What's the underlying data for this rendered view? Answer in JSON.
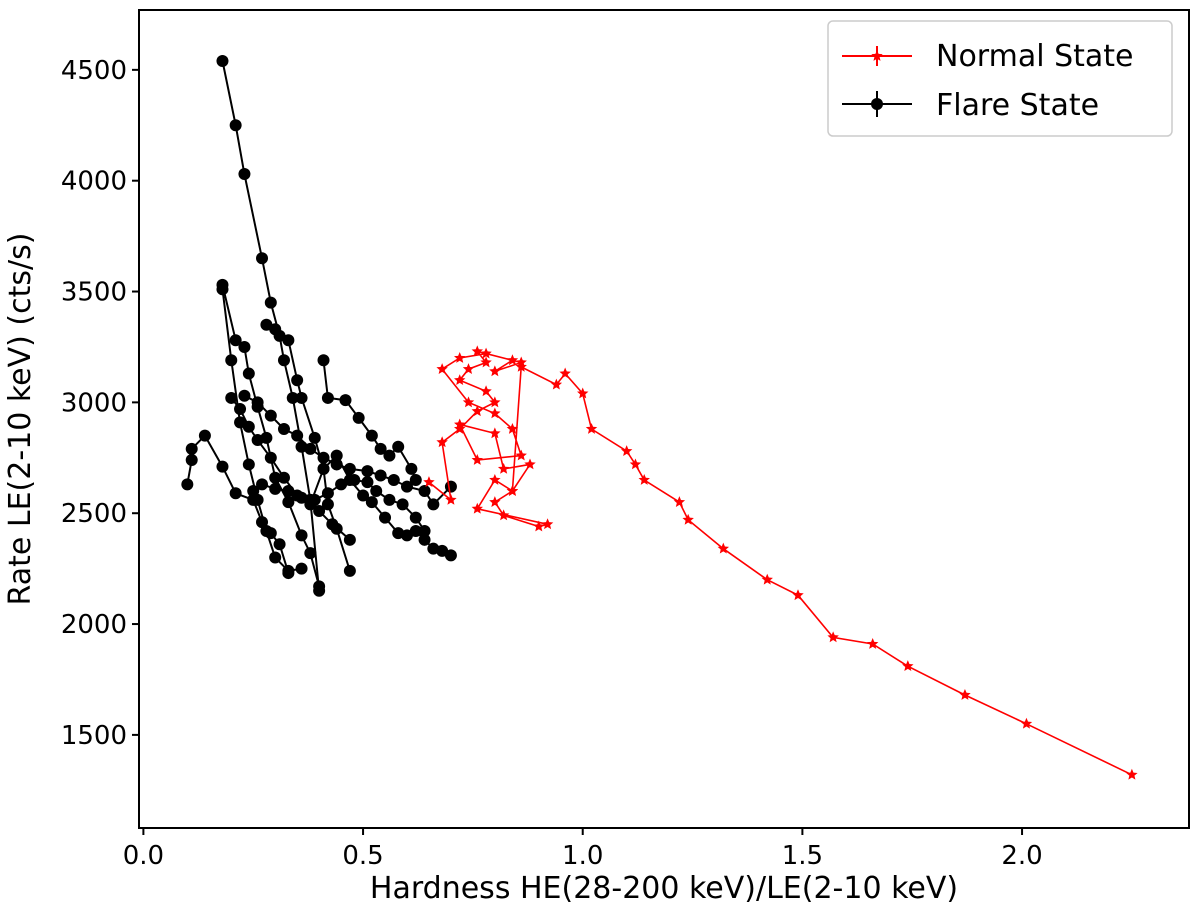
{
  "chart_data": {
    "type": "scatter",
    "xlabel": "Hardness HE(28-200 keV)/LE(2-10 keV)",
    "ylabel": "Rate LE(2-10 keV) (cts/s)",
    "xlim": [
      -0.01,
      2.38
    ],
    "ylim": [
      1080,
      4770
    ],
    "x_ticks": [
      0.0,
      0.5,
      1.0,
      1.5,
      2.0
    ],
    "x_tick_labels": [
      "0.0",
      "0.5",
      "1.0",
      "1.5",
      "2.0"
    ],
    "y_ticks": [
      1500,
      2000,
      2500,
      3000,
      3500,
      4000,
      4500
    ],
    "y_tick_labels": [
      "1500",
      "2000",
      "2500",
      "3000",
      "3500",
      "4000",
      "4500"
    ],
    "legend_position": "top-right",
    "series": [
      {
        "name": "Normal State",
        "color": "#ff0000",
        "marker": "star",
        "x": [
          0.65,
          0.7,
          0.68,
          0.72,
          0.76,
          0.8,
          0.78,
          0.72,
          0.74,
          0.78,
          0.76,
          0.84,
          0.8,
          0.86,
          0.78,
          0.72,
          0.68,
          0.74,
          0.8,
          0.84,
          0.86,
          0.76,
          0.72,
          0.8,
          0.82,
          0.88,
          0.84,
          0.8,
          0.76,
          0.92,
          0.9,
          0.82,
          0.8,
          0.84,
          0.86,
          0.94,
          0.96,
          1.0,
          1.02,
          1.1,
          1.12,
          1.14,
          1.22,
          1.24,
          1.32,
          1.42,
          1.49,
          1.57,
          1.66,
          1.74,
          1.87,
          2.01,
          2.25
        ],
        "y": [
          2640,
          2560,
          2820,
          2880,
          2960,
          3000,
          3050,
          3100,
          3150,
          3180,
          3230,
          3190,
          3140,
          3180,
          3220,
          3200,
          3150,
          3000,
          2950,
          2880,
          2760,
          2740,
          2900,
          2860,
          2700,
          2720,
          2600,
          2650,
          2520,
          2450,
          2440,
          2490,
          2550,
          2600,
          3160,
          3080,
          3130,
          3040,
          2880,
          2780,
          2720,
          2650,
          2550,
          2470,
          2340,
          2200,
          2130,
          1940,
          1910,
          1810,
          1680,
          1550,
          1320
        ]
      },
      {
        "name": "Flare State",
        "color": "#000000",
        "marker": "circle",
        "strands": [
          {
            "x": [
              0.18,
              0.21,
              0.23,
              0.27,
              0.29,
              0.31,
              0.32,
              0.34,
              0.36,
              0.38,
              0.4
            ],
            "y": [
              4540,
              4250,
              4030,
              3650,
              3450,
              3300,
              3190,
              3020,
              2800,
              2560,
              2150
            ]
          },
          {
            "x": [
              0.18,
              0.21,
              0.23,
              0.24,
              0.26,
              0.28,
              0.3,
              0.33,
              0.36,
              0.38,
              0.4
            ],
            "y": [
              3530,
              3280,
              3250,
              3130,
              2980,
              2840,
              2660,
              2550,
              2400,
              2320,
              2170
            ]
          },
          {
            "x": [
              0.28,
              0.3,
              0.33,
              0.35,
              0.36,
              0.39,
              0.41,
              0.42,
              0.44,
              0.47
            ],
            "y": [
              3350,
              3330,
              3280,
              3100,
              3020,
              2840,
              2700,
              2540,
              2430,
              2240
            ]
          },
          {
            "x": [
              0.18,
              0.2,
              0.22,
              0.24,
              0.26,
              0.28,
              0.3,
              0.33,
              0.36
            ],
            "y": [
              3510,
              3190,
              2910,
              2720,
              2560,
              2420,
              2300,
              2240,
              2250
            ]
          },
          {
            "x": [
              0.1,
              0.11,
              0.11,
              0.14,
              0.18,
              0.21,
              0.25,
              0.27,
              0.29,
              0.31,
              0.33
            ],
            "y": [
              2630,
              2740,
              2790,
              2850,
              2710,
              2590,
              2560,
              2460,
              2410,
              2360,
              2230
            ]
          },
          {
            "x": [
              0.2,
              0.22,
              0.24,
              0.26,
              0.29,
              0.32,
              0.35,
              0.38,
              0.4,
              0.43,
              0.47
            ],
            "y": [
              3020,
              2970,
              2890,
              2830,
              2750,
              2660,
              2580,
              2560,
              2510,
              2450,
              2380
            ]
          },
          {
            "x": [
              0.41,
              0.42,
              0.46,
              0.49,
              0.52,
              0.54,
              0.56,
              0.58,
              0.61,
              0.62
            ],
            "y": [
              3190,
              3020,
              3010,
              2930,
              2850,
              2790,
              2760,
              2800,
              2700,
              2650
            ]
          },
          {
            "x": [
              0.23,
              0.26,
              0.29,
              0.32,
              0.35,
              0.38,
              0.41,
              0.44,
              0.47,
              0.51,
              0.54,
              0.57,
              0.6,
              0.64,
              0.66,
              0.7
            ],
            "y": [
              3030,
              3000,
              2940,
              2880,
              2850,
              2790,
              2750,
              2720,
              2700,
              2690,
              2670,
              2650,
              2620,
              2600,
              2540,
              2620
            ]
          },
          {
            "x": [
              0.38,
              0.41,
              0.44,
              0.47,
              0.5,
              0.52,
              0.55,
              0.58,
              0.6,
              0.62,
              0.64,
              0.66,
              0.68,
              0.7
            ],
            "y": [
              2540,
              2700,
              2760,
              2650,
              2580,
              2550,
              2480,
              2410,
              2400,
              2420,
              2380,
              2340,
              2330,
              2310
            ]
          },
          {
            "x": [
              0.25,
              0.27,
              0.3,
              0.33,
              0.36,
              0.39,
              0.42,
              0.45,
              0.48,
              0.51,
              0.53,
              0.56,
              0.59,
              0.62,
              0.64
            ],
            "y": [
              2600,
              2630,
              2610,
              2600,
              2570,
              2560,
              2590,
              2630,
              2650,
              2640,
              2600,
              2560,
              2540,
              2480,
              2420
            ]
          }
        ]
      }
    ]
  }
}
